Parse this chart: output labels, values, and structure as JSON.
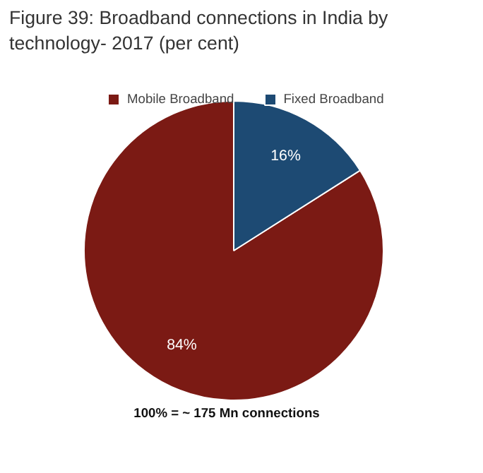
{
  "chart_data": {
    "type": "pie",
    "title": "Figure 39: Broadband connections in India by technology- 2017 (per cent)",
    "categories": [
      "Mobile Broadband",
      "Fixed Broadband"
    ],
    "values": [
      84,
      16
    ],
    "value_labels": [
      "84%",
      "16%"
    ],
    "colors": [
      "#7b1a14",
      "#1d4a73"
    ],
    "legend": "top",
    "annotations": [
      "100% = ~ 175 Mn connections"
    ]
  }
}
